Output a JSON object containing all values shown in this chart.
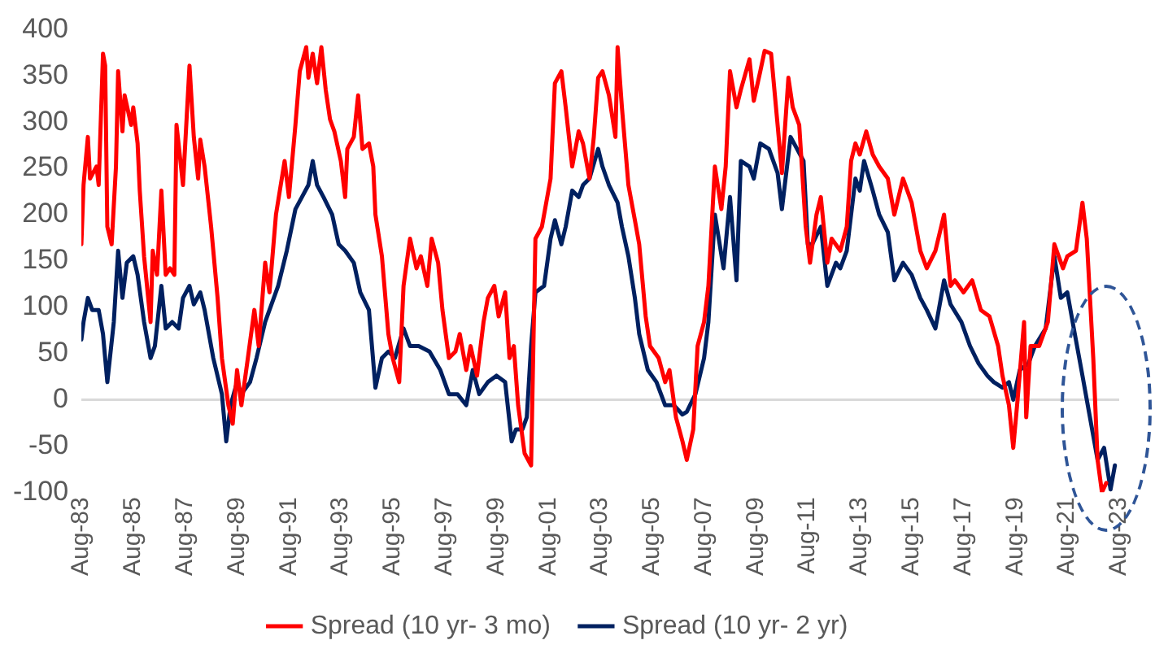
{
  "chart_data": {
    "type": "line",
    "xlim": [
      "1983-08",
      "2023-08"
    ],
    "xticks": [
      {
        "value": "1983-08",
        "label": "Aug-83"
      },
      {
        "value": "1985-08",
        "label": "Aug-85"
      },
      {
        "value": "1987-08",
        "label": "Aug-87"
      },
      {
        "value": "1989-08",
        "label": "Aug-89"
      },
      {
        "value": "1991-08",
        "label": "Aug-91"
      },
      {
        "value": "1993-08",
        "label": "Aug-93"
      },
      {
        "value": "1995-08",
        "label": "Aug-95"
      },
      {
        "value": "1997-08",
        "label": "Aug-97"
      },
      {
        "value": "1999-08",
        "label": "Aug-99"
      },
      {
        "value": "2001-08",
        "label": "Aug-01"
      },
      {
        "value": "2003-08",
        "label": "Aug-03"
      },
      {
        "value": "2005-08",
        "label": "Aug-05"
      },
      {
        "value": "2007-08",
        "label": "Aug-07"
      },
      {
        "value": "2009-08",
        "label": "Aug-09"
      },
      {
        "value": "2011-08",
        "label": "Aug-11"
      },
      {
        "value": "2013-08",
        "label": "Aug-13"
      },
      {
        "value": "2015-08",
        "label": "Aug-15"
      },
      {
        "value": "2017-08",
        "label": "Aug-17"
      },
      {
        "value": "2019-08",
        "label": "Aug-19"
      },
      {
        "value": "2021-08",
        "label": "Aug-21"
      },
      {
        "value": "2023-08",
        "label": "Aug-23"
      }
    ],
    "ylim": [
      -100,
      400
    ],
    "yticks": [
      -100,
      -50,
      0,
      50,
      100,
      150,
      200,
      250,
      300,
      350,
      400
    ],
    "legend": "bottom",
    "marker": "none",
    "line_style": "solid",
    "ref_lines": [
      {
        "axis": "y",
        "value": 0,
        "color": "#d9d9d9"
      }
    ],
    "series": [
      {
        "name": "Spread (10 yr- 3 mo)",
        "color": "#ff0000",
        "x": [
          "1983-08",
          "1983-09",
          "1983-11",
          "1983-12",
          "1984-03",
          "1984-04",
          "1984-06",
          "1984-07",
          "1984-08",
          "1984-10",
          "1984-12",
          "1985-01",
          "1985-03",
          "1985-04",
          "1985-07",
          "1985-08",
          "1985-10",
          "1985-11",
          "1986-01",
          "1986-04",
          "1986-05",
          "1986-07",
          "1986-09",
          "1986-11",
          "1987-01",
          "1987-03",
          "1987-04",
          "1987-07",
          "1987-10",
          "1987-12",
          "1988-02",
          "1988-03",
          "1988-05",
          "1988-08",
          "1988-11",
          "1989-01",
          "1989-04",
          "1989-06",
          "1989-08",
          "1989-10",
          "1990-01",
          "1990-04",
          "1990-06",
          "1990-09",
          "1990-11",
          "1991-02",
          "1991-06",
          "1991-08",
          "1991-11",
          "1992-01",
          "1992-04",
          "1992-05",
          "1992-07",
          "1992-09",
          "1992-11",
          "1993-01",
          "1993-03",
          "1993-05",
          "1993-08",
          "1993-10",
          "1993-11",
          "1994-02",
          "1994-04",
          "1994-06",
          "1994-09",
          "1994-11",
          "1994-12",
          "1995-03",
          "1995-06",
          "1995-08",
          "1995-11",
          "1996-01",
          "1996-04",
          "1996-07",
          "1996-09",
          "1996-12",
          "1997-02",
          "1997-05",
          "1997-07",
          "1997-10",
          "1998-01",
          "1998-03",
          "1998-06",
          "1998-08",
          "1998-11",
          "1999-02",
          "1999-04",
          "1999-07",
          "1999-09",
          "1999-12",
          "2000-02",
          "2000-04",
          "2000-06",
          "2000-09",
          "2000-12",
          "2001-02",
          "2001-05",
          "2001-09",
          "2001-11",
          "2002-02",
          "2002-04",
          "2002-07",
          "2002-10",
          "2002-12",
          "2003-03",
          "2003-05",
          "2003-07",
          "2003-09",
          "2003-12",
          "2004-03",
          "2004-04",
          "2004-06",
          "2004-09",
          "2004-12",
          "2005-02",
          "2005-05",
          "2005-07",
          "2005-11",
          "2006-02",
          "2006-04",
          "2006-07",
          "2006-10",
          "2006-12",
          "2007-03",
          "2007-05",
          "2007-08",
          "2007-10",
          "2008-01",
          "2008-04",
          "2008-06",
          "2008-08",
          "2008-11",
          "2009-01",
          "2009-05",
          "2009-07",
          "2009-10",
          "2009-12",
          "2010-03",
          "2010-06",
          "2010-08",
          "2010-11",
          "2011-01",
          "2011-04",
          "2011-07",
          "2011-09",
          "2011-12",
          "2012-02",
          "2012-05",
          "2012-07",
          "2012-11",
          "2013-02",
          "2013-04",
          "2013-06",
          "2013-08",
          "2013-11",
          "2014-02",
          "2014-05",
          "2014-09",
          "2014-12",
          "2015-04",
          "2015-08",
          "2015-12",
          "2016-03",
          "2016-07",
          "2016-11",
          "2017-02",
          "2017-04",
          "2017-08",
          "2017-12",
          "2018-04",
          "2018-08",
          "2018-12",
          "2019-02",
          "2019-05",
          "2019-07",
          "2019-09",
          "2019-12",
          "2020-01",
          "2020-03",
          "2020-07",
          "2020-11",
          "2021-02",
          "2021-06",
          "2021-08",
          "2021-12",
          "2022-03",
          "2022-05",
          "2022-08",
          "2022-10",
          "2022-12",
          "2023-02"
        ],
        "values": [
          168,
          232,
          284,
          239,
          252,
          232,
          374,
          361,
          187,
          168,
          252,
          355,
          290,
          329,
          297,
          316,
          277,
          226,
          155,
          84,
          161,
          135,
          226,
          135,
          142,
          135,
          297,
          232,
          361,
          284,
          239,
          281,
          252,
          187,
          110,
          45,
          -6,
          -26,
          32,
          -6,
          45,
          97,
          58,
          148,
          116,
          200,
          258,
          219,
          297,
          355,
          381,
          348,
          374,
          342,
          381,
          335,
          303,
          290,
          258,
          219,
          271,
          284,
          329,
          271,
          277,
          252,
          200,
          155,
          71,
          45,
          19,
          123,
          174,
          142,
          155,
          123,
          174,
          148,
          97,
          45,
          52,
          71,
          32,
          58,
          26,
          84,
          110,
          123,
          90,
          116,
          45,
          58,
          -6,
          -58,
          -71,
          174,
          187,
          239,
          342,
          355,
          316,
          252,
          290,
          277,
          239,
          284,
          348,
          355,
          329,
          284,
          381,
          316,
          232,
          194,
          168,
          90,
          58,
          45,
          19,
          32,
          -19,
          -45,
          -65,
          -32,
          58,
          84,
          123,
          252,
          206,
          252,
          355,
          316,
          335,
          368,
          323,
          355,
          377,
          374,
          297,
          245,
          348,
          316,
          297,
          187,
          148,
          200,
          219,
          148,
          174,
          161,
          187,
          258,
          277,
          265,
          290,
          265,
          252,
          239,
          200,
          239,
          213,
          161,
          142,
          161,
          200,
          123,
          129,
          116,
          129,
          97,
          90,
          58,
          26,
          -6,
          -52,
          0,
          84,
          -19,
          58,
          58,
          84,
          168,
          142,
          155,
          161,
          213,
          174,
          45,
          -65,
          -100,
          -90
        ]
      },
      {
        "name": "Spread (10 yr- 2 yr)",
        "color": "#002060",
        "x": [
          "1983-08",
          "1983-09",
          "1983-11",
          "1984-01",
          "1984-04",
          "1984-06",
          "1984-08",
          "1984-11",
          "1985-01",
          "1985-03",
          "1985-05",
          "1985-08",
          "1985-10",
          "1986-01",
          "1986-04",
          "1986-06",
          "1986-09",
          "1986-11",
          "1987-02",
          "1987-05",
          "1987-07",
          "1987-10",
          "1987-12",
          "1988-03",
          "1988-05",
          "1988-09",
          "1989-01",
          "1989-03",
          "1989-05",
          "1989-08",
          "1989-10",
          "1990-02",
          "1990-05",
          "1990-09",
          "1990-11",
          "1991-03",
          "1991-07",
          "1991-11",
          "1992-02",
          "1992-05",
          "1992-07",
          "1992-09",
          "1992-12",
          "1993-04",
          "1993-07",
          "1993-10",
          "1994-02",
          "1994-05",
          "1994-09",
          "1994-12",
          "1995-03",
          "1995-06",
          "1995-09",
          "1996-01",
          "1996-04",
          "1996-08",
          "1997-01",
          "1997-06",
          "1997-10",
          "1998-02",
          "1998-06",
          "1998-09",
          "1998-12",
          "1999-04",
          "1999-08",
          "1999-12",
          "2000-03",
          "2000-05",
          "2000-08",
          "2000-10",
          "2000-12",
          "2001-02",
          "2001-06",
          "2001-09",
          "2001-11",
          "2002-02",
          "2002-04",
          "2002-07",
          "2002-10",
          "2002-12",
          "2003-03",
          "2003-07",
          "2003-09",
          "2003-12",
          "2004-04",
          "2004-06",
          "2004-09",
          "2004-12",
          "2005-02",
          "2005-06",
          "2005-10",
          "2006-02",
          "2006-06",
          "2006-10",
          "2006-12",
          "2007-04",
          "2007-08",
          "2007-10",
          "2008-01",
          "2008-05",
          "2008-08",
          "2008-11",
          "2009-01",
          "2009-05",
          "2009-07",
          "2009-10",
          "2010-02",
          "2010-06",
          "2010-08",
          "2010-12",
          "2011-03",
          "2011-06",
          "2011-08",
          "2011-10",
          "2012-02",
          "2012-05",
          "2012-09",
          "2012-11",
          "2013-02",
          "2013-06",
          "2013-08",
          "2013-10",
          "2014-02",
          "2014-05",
          "2014-09",
          "2014-12",
          "2015-04",
          "2015-08",
          "2015-12",
          "2016-03",
          "2016-07",
          "2016-11",
          "2017-02",
          "2017-07",
          "2017-11",
          "2018-03",
          "2018-07",
          "2018-10",
          "2019-02",
          "2019-05",
          "2019-07",
          "2019-10",
          "2020-02",
          "2020-05",
          "2020-10",
          "2021-02",
          "2021-05",
          "2021-08",
          "2021-11",
          "2022-03",
          "2022-05",
          "2022-08",
          "2022-10",
          "2023-01",
          "2023-04",
          "2023-06"
        ],
        "values": [
          65,
          84,
          110,
          97,
          97,
          71,
          19,
          84,
          161,
          110,
          148,
          155,
          135,
          84,
          45,
          58,
          123,
          77,
          84,
          77,
          110,
          123,
          103,
          116,
          97,
          45,
          6,
          -45,
          -6,
          19,
          6,
          19,
          45,
          84,
          97,
          123,
          161,
          206,
          219,
          232,
          258,
          232,
          219,
          200,
          168,
          161,
          148,
          116,
          97,
          13,
          45,
          52,
          45,
          77,
          58,
          58,
          52,
          32,
          6,
          6,
          -6,
          32,
          6,
          19,
          26,
          19,
          -45,
          -32,
          -32,
          -19,
          58,
          116,
          123,
          174,
          194,
          168,
          187,
          226,
          219,
          232,
          239,
          271,
          252,
          232,
          213,
          187,
          155,
          110,
          71,
          32,
          19,
          -6,
          -6,
          -16,
          -13,
          6,
          45,
          84,
          200,
          142,
          219,
          129,
          258,
          252,
          239,
          277,
          271,
          245,
          206,
          284,
          271,
          258,
          168,
          168,
          187,
          123,
          148,
          142,
          161,
          239,
          226,
          258,
          226,
          200,
          181,
          129,
          148,
          135,
          110,
          97,
          77,
          129,
          103,
          84,
          58,
          39,
          26,
          19,
          13,
          19,
          0,
          32,
          39,
          58,
          77,
          155,
          110,
          116,
          77,
          26,
          0,
          -39,
          -65,
          -52,
          -97,
          -71
        ]
      }
    ]
  }
}
